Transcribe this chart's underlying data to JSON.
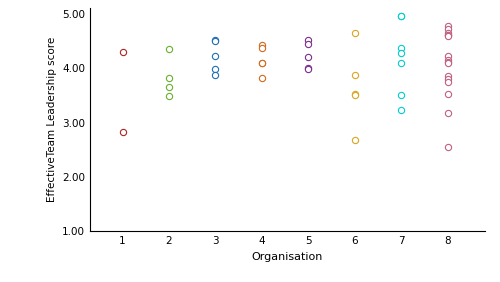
{
  "organisations": {
    "1": {
      "color": "#B22222",
      "values": [
        4.3,
        2.82
      ]
    },
    "2": {
      "color": "#6AAF2E",
      "values": [
        4.35,
        3.82,
        3.65,
        3.48
      ]
    },
    "3": {
      "color": "#1E6FB5",
      "values": [
        4.52,
        4.5,
        4.22,
        3.99,
        3.87
      ]
    },
    "4": {
      "color": "#D2691E",
      "values": [
        4.42,
        4.38,
        4.1,
        4.1,
        3.82
      ]
    },
    "5": {
      "color": "#7B2D8B",
      "values": [
        4.52,
        4.45,
        4.2,
        4.0,
        3.99
      ]
    },
    "6": {
      "color": "#DAA520",
      "values": [
        4.65,
        3.88,
        3.52,
        3.5,
        2.68
      ]
    },
    "7": {
      "color": "#00CED1",
      "values": [
        4.97,
        4.97,
        4.38,
        4.28,
        4.1,
        3.5,
        3.23
      ]
    },
    "8": {
      "color": "#C06080",
      "values": [
        4.78,
        4.72,
        4.65,
        4.62,
        4.62,
        4.6,
        4.22,
        4.15,
        4.12,
        4.1,
        3.85,
        3.8,
        3.75,
        3.52,
        3.18,
        2.55
      ]
    }
  },
  "xlabel": "Organisation",
  "ylabel": "EffectiveTeam Leadership score",
  "ylim": [
    1.0,
    5.1
  ],
  "yticks": [
    1.0,
    2.0,
    3.0,
    4.0,
    5.0
  ],
  "xticks": [
    1,
    2,
    3,
    4,
    5,
    6,
    7,
    8
  ],
  "figsize": [
    5.0,
    2.82
  ],
  "dpi": 100,
  "background_color": "#ffffff",
  "marker": "o",
  "markersize": 4.5,
  "markeredgewidth": 0.8
}
